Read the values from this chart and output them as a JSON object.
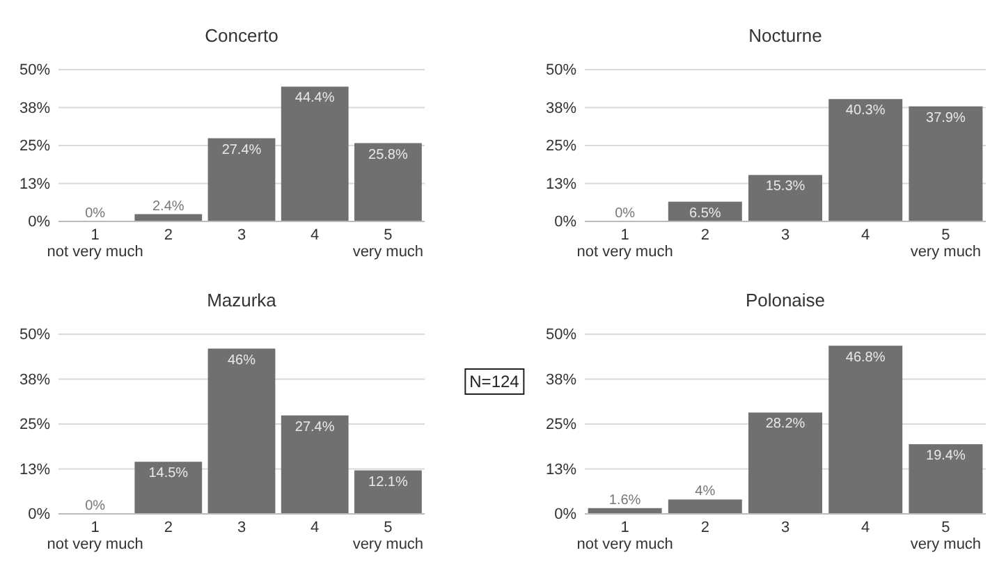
{
  "chart_data": [
    {
      "type": "bar",
      "title": "Concerto",
      "categories": [
        "1\nnot very much",
        "2",
        "3",
        "4",
        "5\nvery much"
      ],
      "values": [
        0,
        2.4,
        27.4,
        44.4,
        25.8
      ],
      "value_labels": [
        "0%",
        "2.4%",
        "27.4%",
        "44.4%",
        "25.8%"
      ],
      "color": "#707070",
      "ylim": [
        0,
        50
      ],
      "yticks": [
        {
          "value": 0,
          "label": "0%"
        },
        {
          "value": 12.5,
          "label": "13%"
        },
        {
          "value": 25,
          "label": "25%"
        },
        {
          "value": 37.5,
          "label": "38%"
        },
        {
          "value": 50,
          "label": "50%"
        }
      ],
      "grid": "y"
    },
    {
      "type": "bar",
      "title": "Nocturne",
      "categories": [
        "1\nnot very much",
        "2",
        "3",
        "4",
        "5\nvery much"
      ],
      "values": [
        0,
        6.5,
        15.3,
        40.3,
        37.9
      ],
      "value_labels": [
        "0%",
        "6.5%",
        "15.3%",
        "40.3%",
        "37.9%"
      ],
      "color": "#707070",
      "ylim": [
        0,
        50
      ],
      "yticks": [
        {
          "value": 0,
          "label": "0%"
        },
        {
          "value": 12.5,
          "label": "13%"
        },
        {
          "value": 25,
          "label": "25%"
        },
        {
          "value": 37.5,
          "label": "38%"
        },
        {
          "value": 50,
          "label": "50%"
        }
      ],
      "grid": "y"
    },
    {
      "type": "bar",
      "title": "Mazurka",
      "categories": [
        "1\nnot very much",
        "2",
        "3",
        "4",
        "5\nvery much"
      ],
      "values": [
        0,
        14.5,
        46,
        27.4,
        12.1
      ],
      "value_labels": [
        "0%",
        "14.5%",
        "46%",
        "27.4%",
        "12.1%"
      ],
      "color": "#707070",
      "ylim": [
        0,
        50
      ],
      "yticks": [
        {
          "value": 0,
          "label": "0%"
        },
        {
          "value": 12.5,
          "label": "13%"
        },
        {
          "value": 25,
          "label": "25%"
        },
        {
          "value": 37.5,
          "label": "38%"
        },
        {
          "value": 50,
          "label": "50%"
        }
      ],
      "grid": "y"
    },
    {
      "type": "bar",
      "title": "Polonaise",
      "categories": [
        "1\nnot very much",
        "2",
        "3",
        "4",
        "5\nvery much"
      ],
      "values": [
        1.6,
        4,
        28.2,
        46.8,
        19.4
      ],
      "value_labels": [
        "1.6%",
        "4%",
        "28.2%",
        "46.8%",
        "19.4%"
      ],
      "color": "#707070",
      "ylim": [
        0,
        50
      ],
      "yticks": [
        {
          "value": 0,
          "label": "0%"
        },
        {
          "value": 12.5,
          "label": "13%"
        },
        {
          "value": 25,
          "label": "25%"
        },
        {
          "value": 37.5,
          "label": "38%"
        },
        {
          "value": 50,
          "label": "50%"
        }
      ],
      "grid": "y"
    },
    {
      "type": "other",
      "annotations": [
        "N=124"
      ]
    }
  ]
}
